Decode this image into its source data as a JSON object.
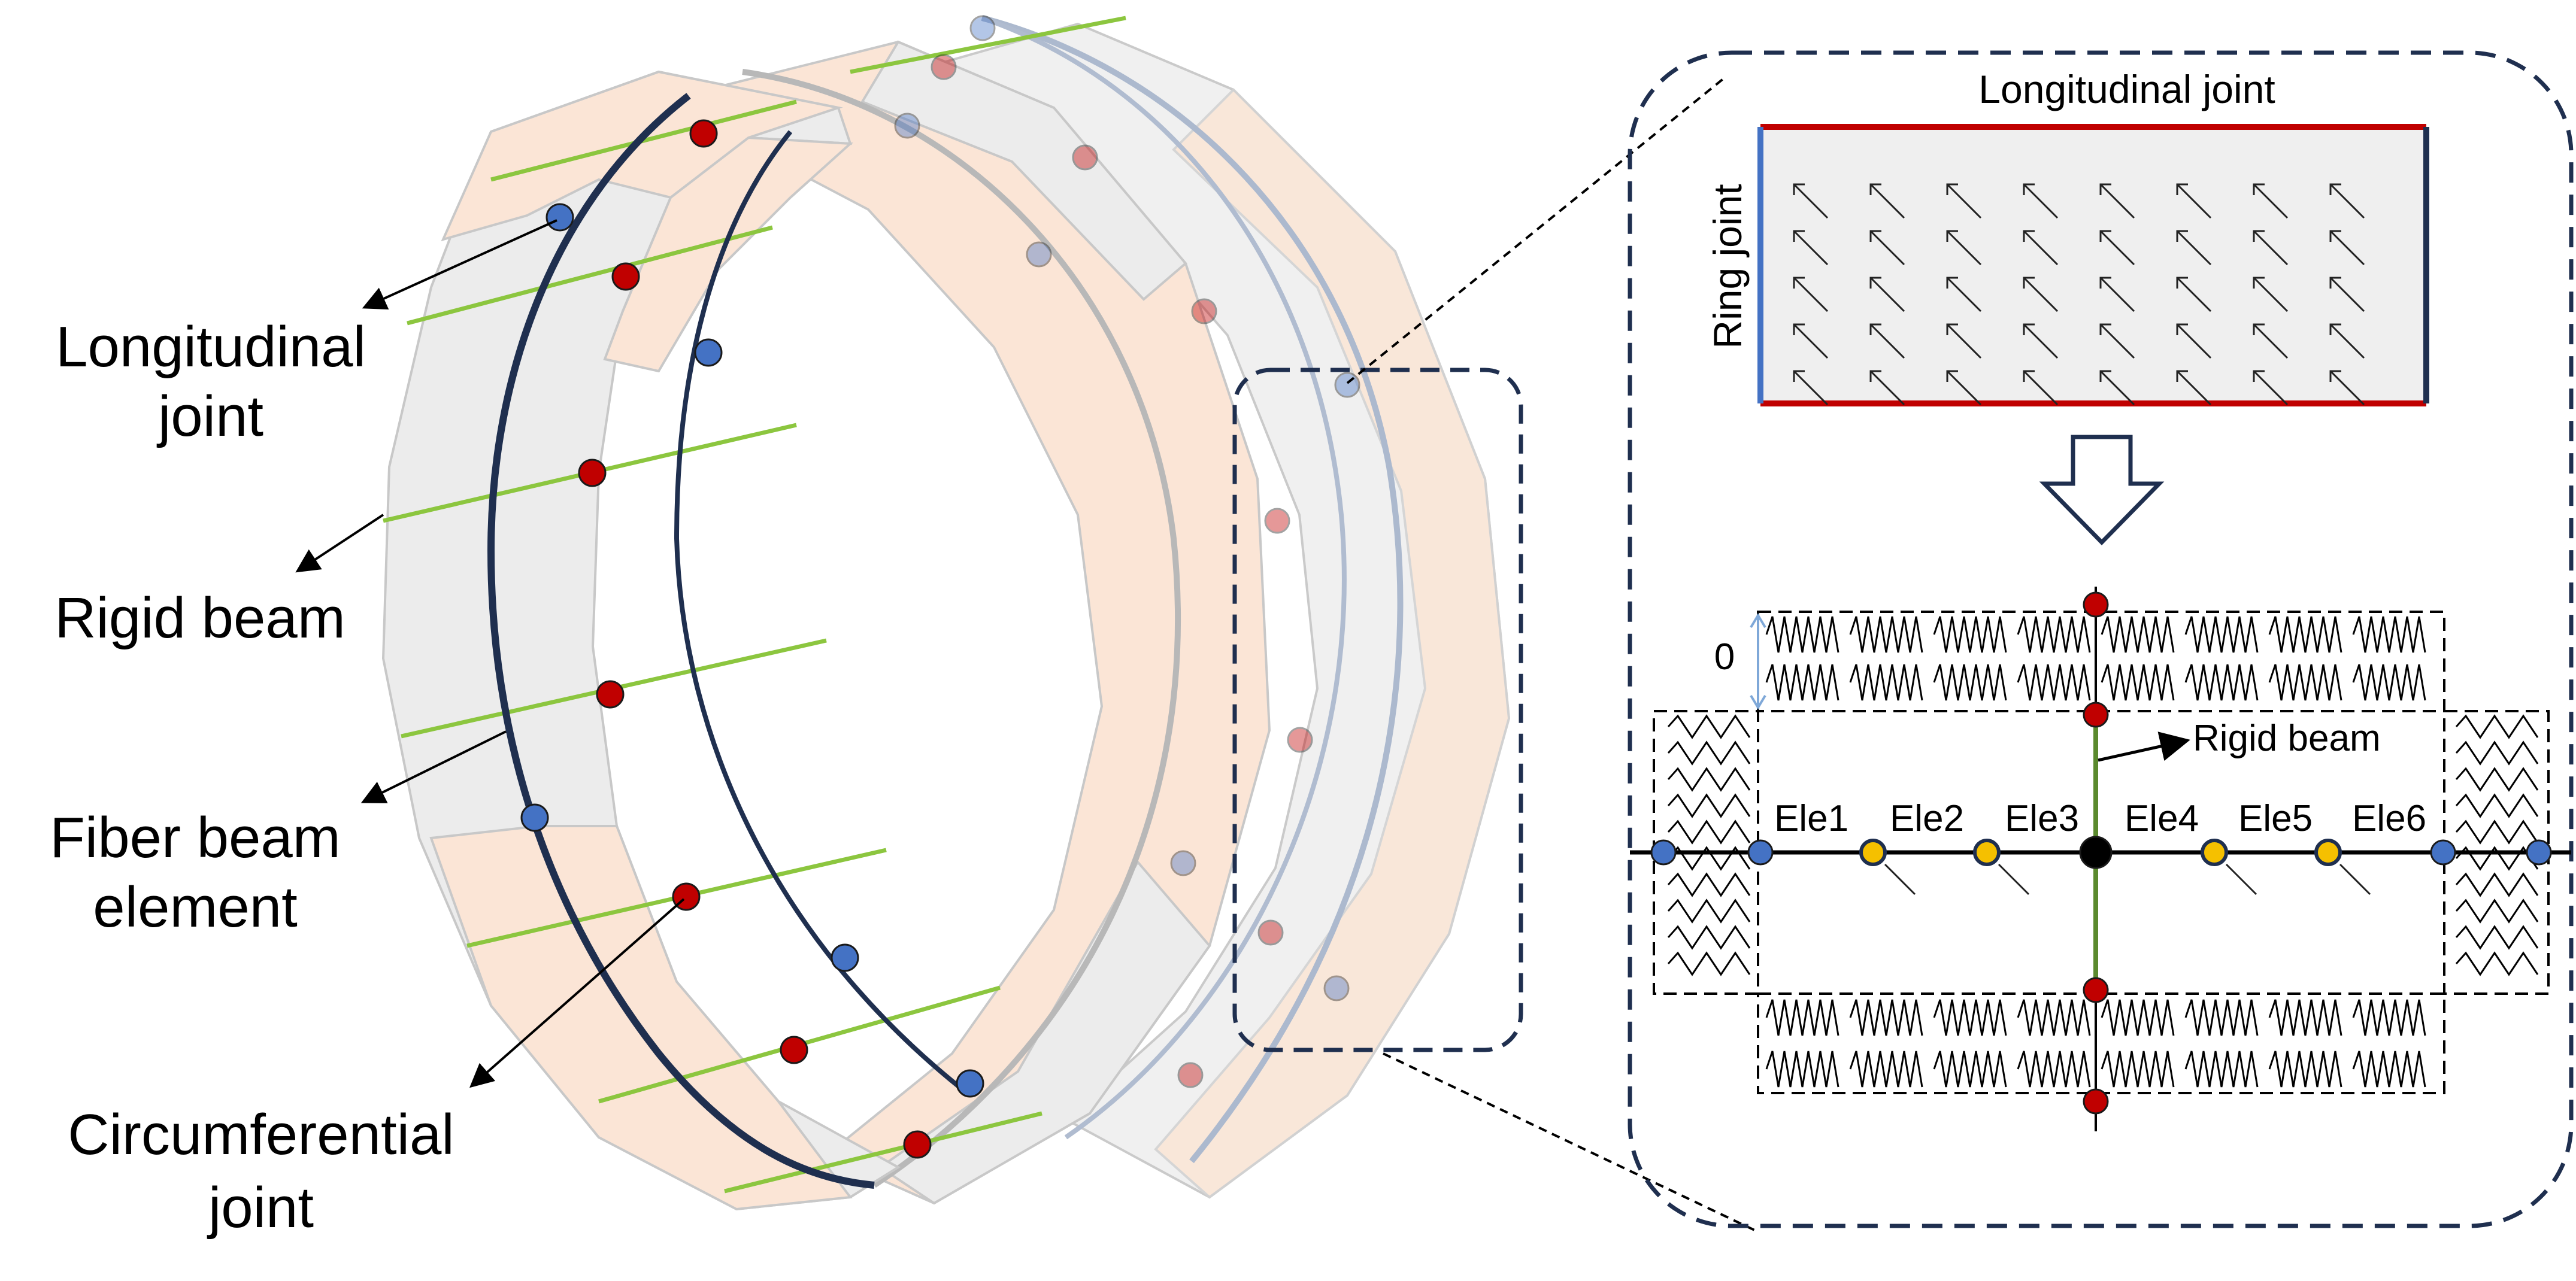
{
  "left_labels": {
    "longitudinal_joint_line1": "Longitudinal",
    "longitudinal_joint_line2": "joint",
    "rigid_beam": "Rigid beam",
    "fiber_beam_line1": "Fiber beam",
    "fiber_beam_line2": "element",
    "circumferential_line1": "Circumferential",
    "circumferential_line2": "joint"
  },
  "detail": {
    "top_label": "Longitudinal joint",
    "side_label": "Ring joint",
    "spring_gap_label": "0",
    "rigid_beam_label": "Rigid beam",
    "elements": [
      "Ele1",
      "Ele2",
      "Ele3",
      "Ele4",
      "Ele5",
      "Ele6"
    ]
  },
  "colors": {
    "segment_orange": "#fbe5d6",
    "segment_gray": "#ececec",
    "rigid_beam_green": "#8cc63f",
    "joint_red": "#c00000",
    "joint_blue": "#4472c4",
    "node_yellow": "#f5c000",
    "outline_navy": "#1f2f4f",
    "longitudinal_red": "#c00000",
    "ring_blue": "#4472c4"
  },
  "icons": [
    "hollow-down-arrow-icon",
    "spring-icon",
    "fiber-arrow-icon"
  ]
}
